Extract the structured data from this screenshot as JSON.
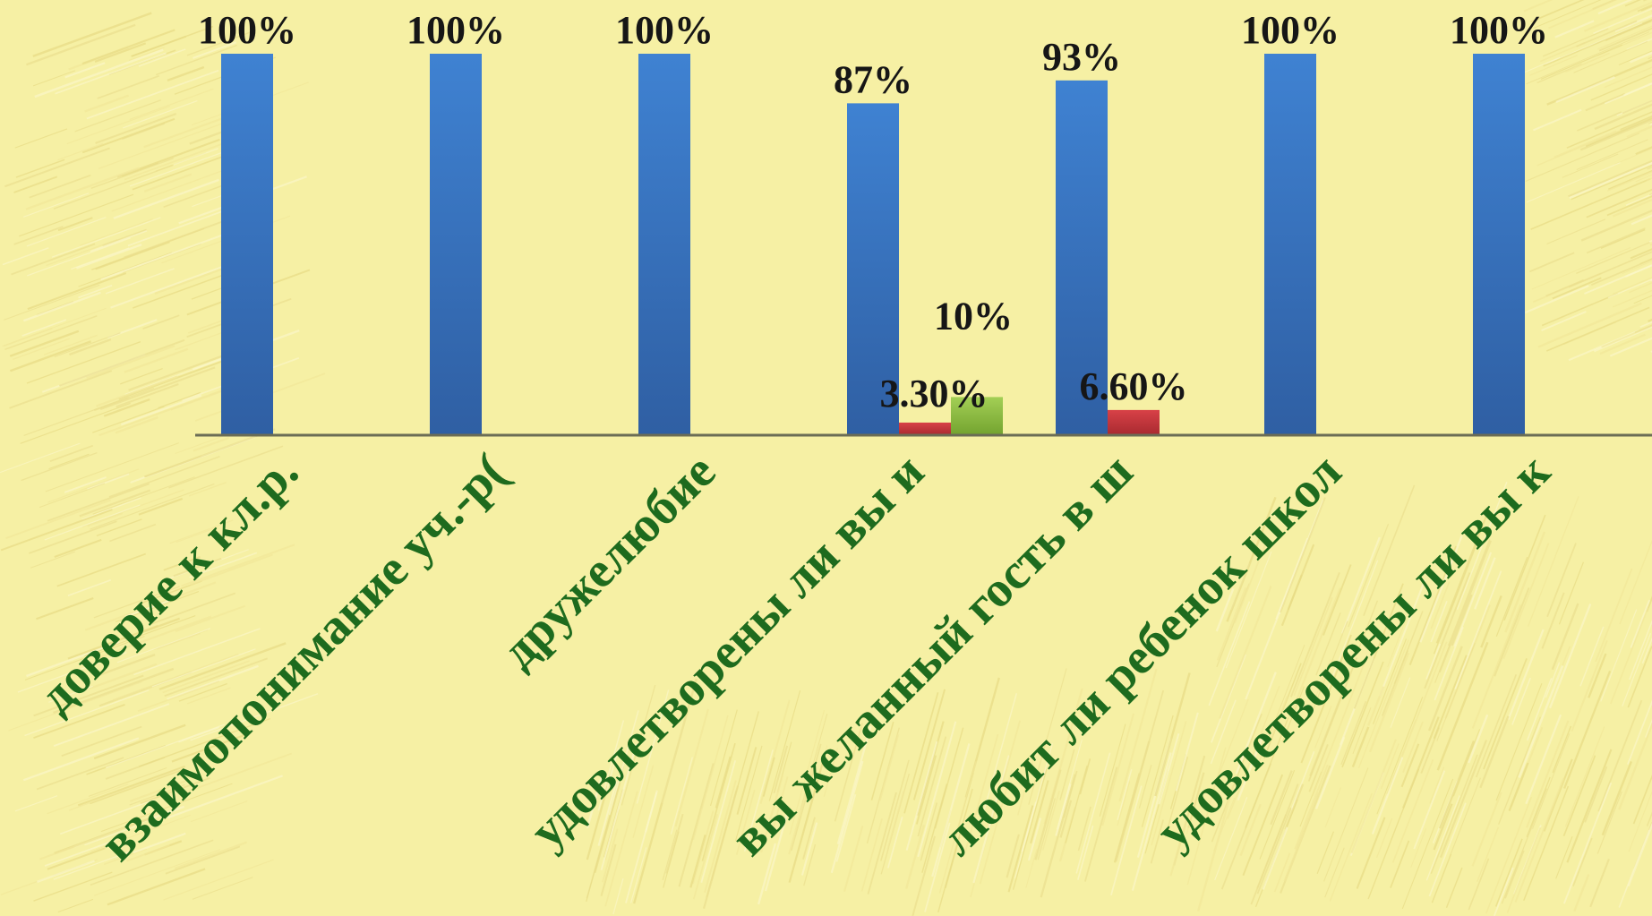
{
  "chart_data": {
    "type": "bar",
    "categories": [
      "доверие  к кл.р.",
      "взаимопонимание уч.-р(",
      "дружелюбие",
      "удовлетворены ли вы и",
      "вы желанный гость в ш",
      "любит ли ребенок школ",
      "удовлетворены ли вы к"
    ],
    "series": [
      {
        "color": "#3e7bc4",
        "values": [
          100,
          100,
          100,
          87,
          93,
          100,
          100
        ],
        "labels": [
          "100%",
          "100%",
          "100%",
          "87%",
          "93%",
          "100%",
          "100%"
        ]
      },
      {
        "color": "#c8363a",
        "values": [
          null,
          null,
          null,
          3.3,
          6.6,
          null,
          null
        ],
        "labels": [
          null,
          null,
          null,
          "3.30%",
          "6.60%",
          null,
          null
        ]
      },
      {
        "color": "#8cbf3f",
        "values": [
          null,
          null,
          null,
          10,
          null,
          null,
          null
        ],
        "labels": [
          null,
          null,
          null,
          "10%",
          null,
          null,
          null
        ]
      }
    ],
    "ylim": [
      0,
      100
    ],
    "grid": false,
    "legend": "none",
    "colors": {
      "category_text": "#1e6b1e",
      "value_text": "#161616",
      "axis": "#6b6d55",
      "background": "#f6f0a4"
    }
  }
}
